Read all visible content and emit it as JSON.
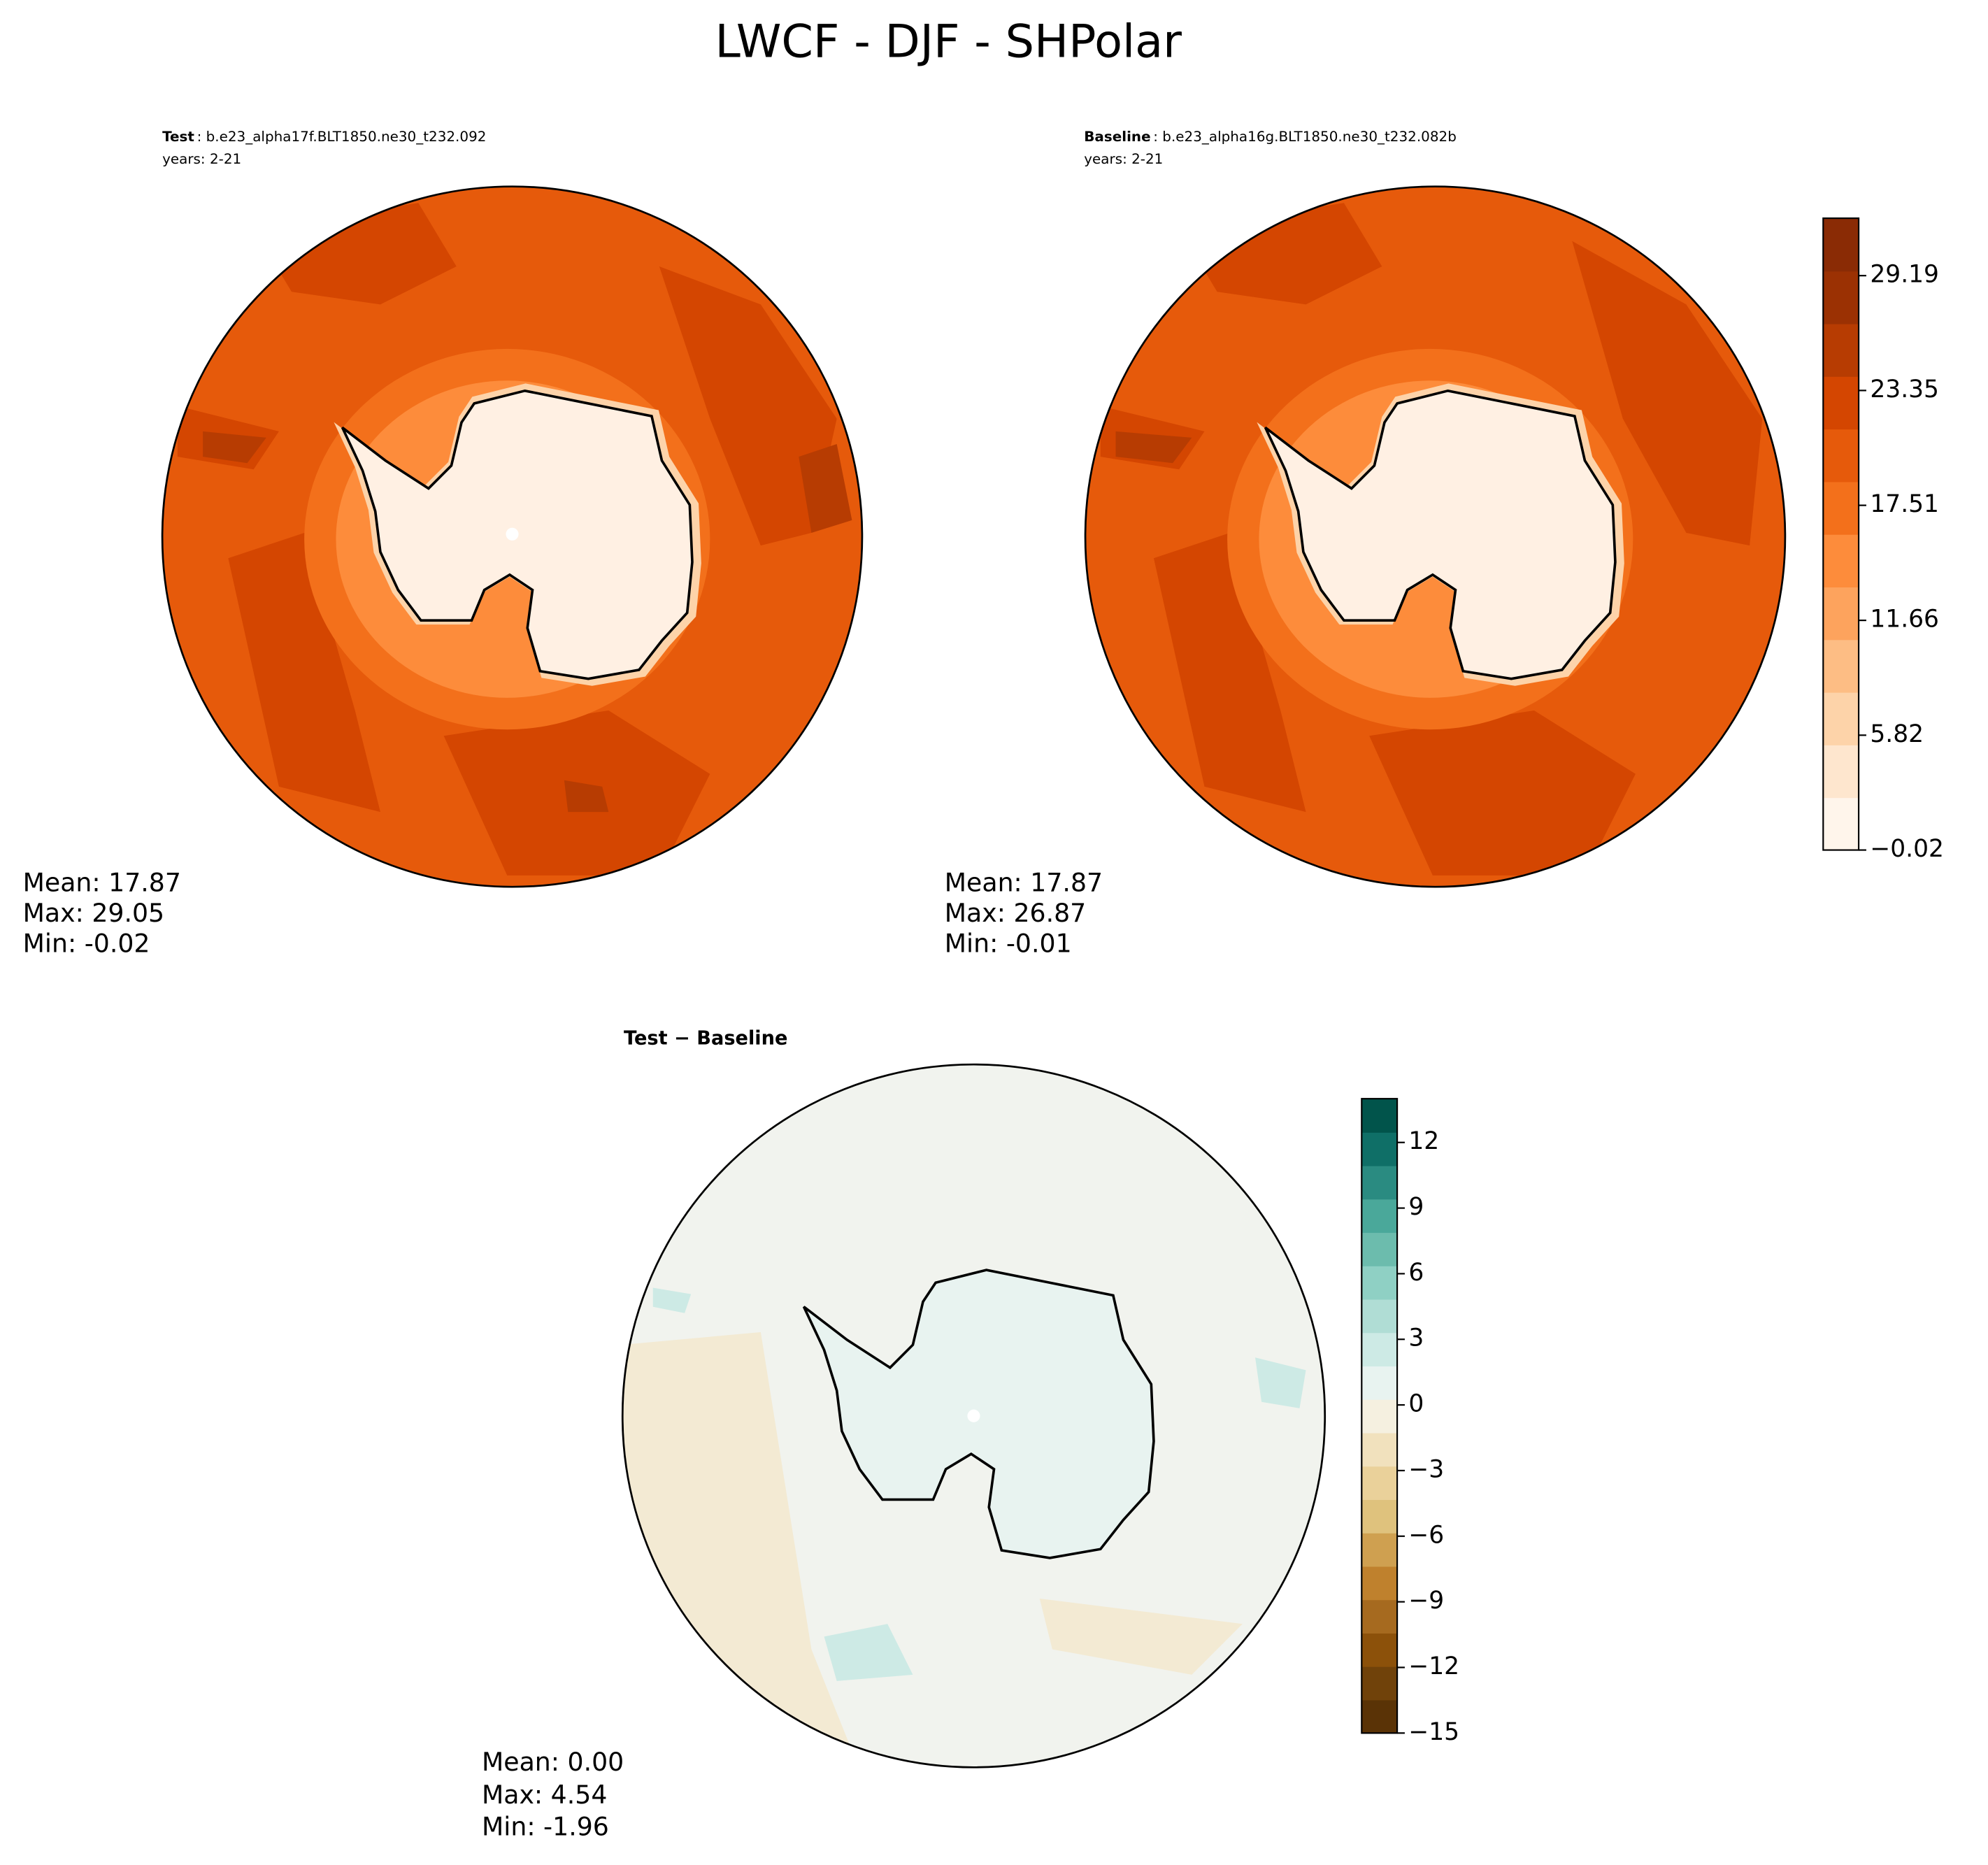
{
  "title": "LWCF - DJF - SHPolar",
  "panels": [
    {
      "label": "Test",
      "case": ": b.e23_alpha17f.BLT1850.ne30_t232.092",
      "years": "years: 2-21",
      "stats": [
        "Mean: 17.87",
        "Max: 29.05",
        "Min: -0.02"
      ]
    },
    {
      "label": "Baseline",
      "case": ": b.e23_alpha16g.BLT1850.ne30_t232.082b",
      "years": "years: 2-21",
      "stats": [
        "Mean: 17.87",
        "Max: 26.87",
        "Min: -0.01"
      ]
    },
    {
      "label": "Test − Baseline",
      "stats": [
        "Mean:  0.00",
        "Max:  4.54",
        "Min: -1.96"
      ]
    }
  ],
  "colorbars": [
    {
      "ylim": [
        -0.02,
        32.11
      ],
      "yticks": [
        {
          "value": -0.02,
          "label": "−0.02"
        },
        5.82,
        11.66,
        17.51,
        23.35,
        29.19
      ],
      "colors": [
        "#fff5eb",
        "#fee6ce",
        "#fdd3a9",
        "#fdbd84",
        "#fda35d",
        "#fd8c3b",
        "#f3701b",
        "#e65a0b",
        "#d44601",
        "#b73c02",
        "#9b3103",
        "#8a2b05"
      ]
    },
    {
      "ylim": [
        -15,
        14
      ],
      "yticks": [
        {
          "value": -15,
          "label": "−15"
        },
        {
          "value": -12,
          "label": "−12"
        },
        {
          "value": -9,
          "label": "−9"
        },
        {
          "value": -6,
          "label": "−6"
        },
        {
          "value": -3,
          "label": "−3"
        },
        0,
        3,
        6,
        9,
        12
      ],
      "colors": [
        "#5a3306",
        "#70420a",
        "#8c510a",
        "#a66a1f",
        "#bf812d",
        "#cfa050",
        "#dfc27d",
        "#ead19a",
        "#f1e1bd",
        "#f5f0e0",
        "#e8f3f0",
        "#cdeae5",
        "#b0ddd5",
        "#8fd0c4",
        "#6cbcad",
        "#4aa89a",
        "#2a8b81",
        "#0f6f67",
        "#01544b"
      ]
    }
  ]
}
